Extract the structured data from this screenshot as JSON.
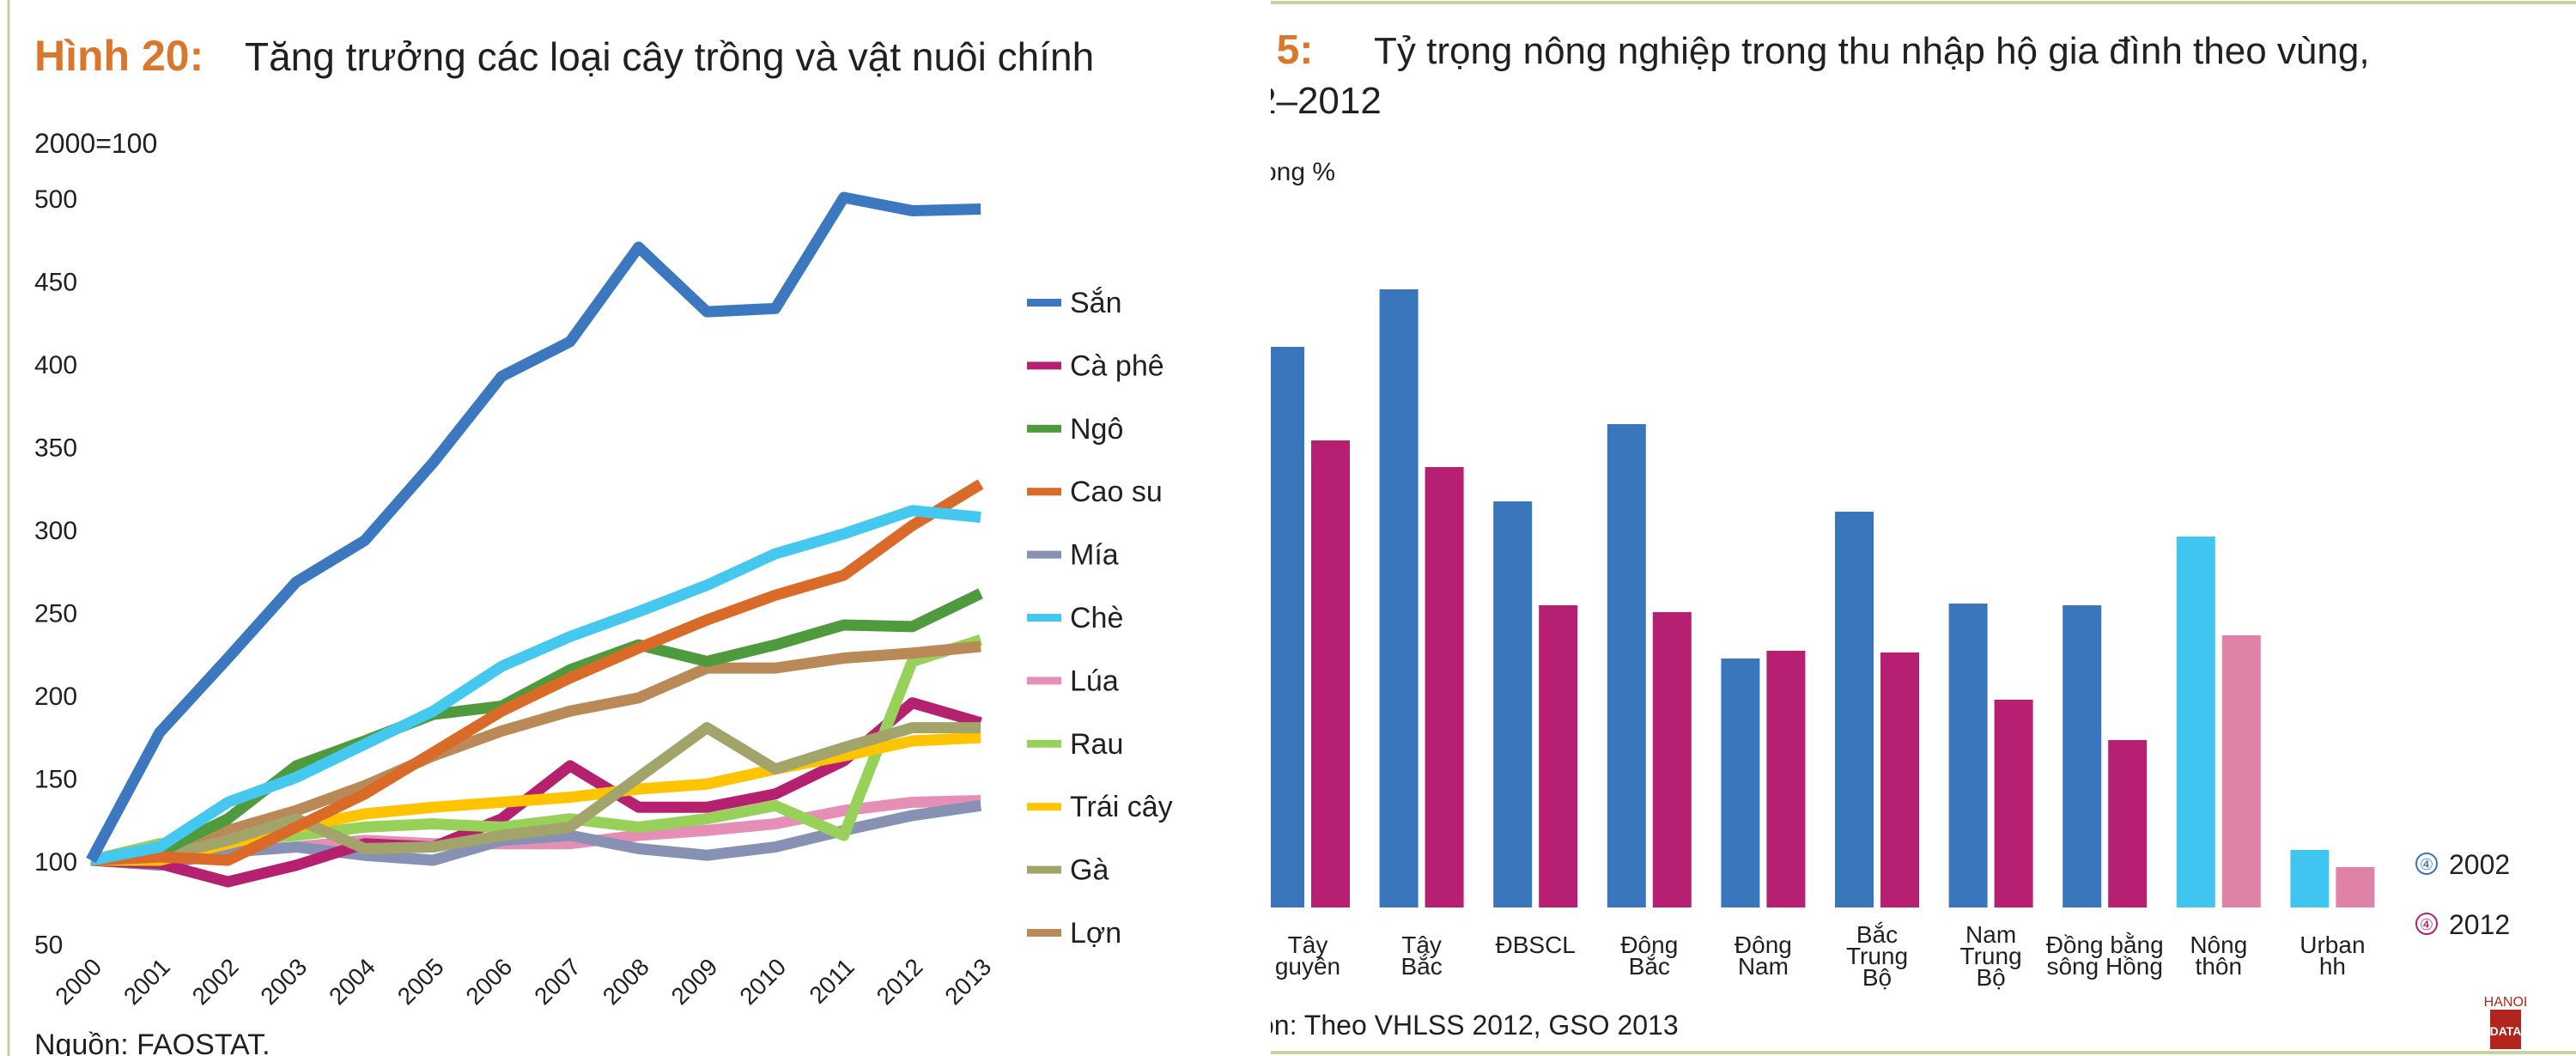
{
  "chart_data": [
    {
      "type": "line",
      "figure_label": "Hình 20:",
      "title": "Tăng trưởng các loại cây trồng và vật nuôi chính",
      "ylabel": "2000=100",
      "ylim": [
        50,
        500
      ],
      "yticks": [
        "500",
        "450",
        "400",
        "350",
        "300",
        "250",
        "200",
        "150",
        "100",
        "50"
      ],
      "x": [
        "2000",
        "2001",
        "2002",
        "2003",
        "2004",
        "2005",
        "2006",
        "2007",
        "2008",
        "2009",
        "2010",
        "2011",
        "2012",
        "2013"
      ],
      "legend_position": "right",
      "series": [
        {
          "name": "Sắn",
          "color": "#3b78c0",
          "values": [
            100,
            177,
            222,
            268,
            293,
            340,
            392,
            413,
            470,
            431,
            433,
            500,
            492,
            493
          ]
        },
        {
          "name": "Cà phê",
          "color": "#b5206f",
          "values": [
            100,
            98,
            87,
            97,
            110,
            108,
            125,
            157,
            132,
            132,
            140,
            160,
            195,
            183
          ]
        },
        {
          "name": "Ngô",
          "color": "#4e9a3c",
          "values": [
            100,
            105,
            125,
            157,
            172,
            188,
            193,
            215,
            230,
            220,
            230,
            242,
            241,
            261
          ]
        },
        {
          "name": "Cao su",
          "color": "#d96a28",
          "values": [
            100,
            102,
            100,
            120,
            140,
            165,
            190,
            210,
            228,
            245,
            260,
            272,
            302,
            327
          ]
        },
        {
          "name": "Mía",
          "color": "#8791b3",
          "values": [
            100,
            97,
            105,
            108,
            103,
            100,
            112,
            115,
            107,
            103,
            108,
            118,
            127,
            133
          ]
        },
        {
          "name": "Chè",
          "color": "#45c8f0",
          "values": [
            100,
            108,
            135,
            150,
            170,
            190,
            217,
            235,
            250,
            266,
            285,
            297,
            311,
            307
          ]
        },
        {
          "name": "Lúa",
          "color": "#e58fb6",
          "values": [
            100,
            100,
            105,
            108,
            112,
            110,
            110,
            110,
            115,
            118,
            122,
            130,
            135,
            136
          ]
        },
        {
          "name": "Rau",
          "color": "#97d15a",
          "values": [
            100,
            110,
            112,
            115,
            120,
            122,
            120,
            125,
            120,
            125,
            133,
            115,
            220,
            233
          ]
        },
        {
          "name": "Trái cây",
          "color": "#ffc400",
          "values": [
            100,
            100,
            110,
            120,
            128,
            132,
            135,
            138,
            143,
            146,
            155,
            163,
            172,
            174
          ]
        },
        {
          "name": "Gà",
          "color": "#a3a46a",
          "values": [
            100,
            102,
            112,
            125,
            107,
            108,
            115,
            120,
            150,
            180,
            155,
            168,
            180,
            180
          ]
        },
        {
          "name": "Lợn",
          "color": "#b98a58",
          "values": [
            100,
            108,
            118,
            130,
            145,
            163,
            178,
            190,
            198,
            216,
            216,
            222,
            225,
            229
          ]
        }
      ],
      "source": "Nguồn: FAOSTAT."
    },
    {
      "type": "bar",
      "figure_label": "h 5:",
      "title": "Tỷ trọng nông nghiệp trong thu nhập hộ gia đình theo vùng,",
      "title_line2": "2–2012",
      "ylabel": "ong %",
      "ylim": [
        0,
        80
      ],
      "categories": [
        [
          "Tây",
          "guyên"
        ],
        [
          "Tây",
          "Bắc"
        ],
        [
          "ĐBSCL"
        ],
        [
          "Đông",
          "Bắc"
        ],
        [
          "Đông",
          "Nam"
        ],
        [
          "Bắc",
          "Trung",
          "Bộ"
        ],
        [
          "Nam",
          "Trung",
          "Bộ"
        ],
        [
          "Đồng bằng",
          "sông Hồng"
        ],
        [
          "Nông",
          "thôn"
        ],
        [
          "Urban",
          "hh"
        ]
      ],
      "series": [
        {
          "name": "2002",
          "marker": "④",
          "color": "#3a76bb",
          "alt_color": "#40c4f0",
          "values": [
            65.3,
            72.0,
            47.3,
            56.3,
            29.0,
            46.1,
            35.4,
            35.2,
            43.2,
            6.7
          ]
        },
        {
          "name": "2012",
          "marker": "④",
          "color": "#b71f73",
          "alt_color": "#de82a8",
          "values": [
            54.4,
            51.3,
            35.2,
            34.4,
            29.9,
            29.7,
            24.2,
            19.5,
            31.7,
            4.7
          ]
        }
      ],
      "legend_position": "right",
      "source": "ồn: Theo VHLSS 2012, GSO 2013",
      "logo": {
        "top": "HANOI",
        "bottom": "DATA"
      }
    }
  ]
}
